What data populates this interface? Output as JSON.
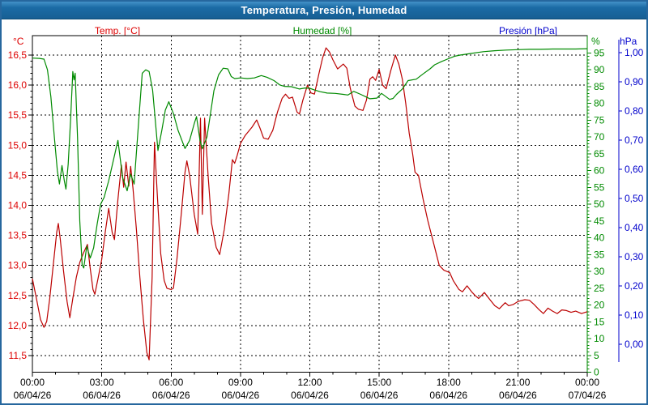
{
  "window": {
    "title": "Temperatura, Presión, Humedad"
  },
  "legend": [
    {
      "label": "Temp. [°C]",
      "color": "#dd0000"
    },
    {
      "label": "Humedad [%]",
      "color": "#008a00"
    },
    {
      "label": "Presión [hPa]",
      "color": "#0000cc"
    }
  ],
  "axes": {
    "temp": {
      "unit": "°C",
      "color": "#dd0000",
      "min": 11.5,
      "max": 16.5,
      "tick_values": [
        16.5,
        16.0,
        15.5,
        15.0,
        14.5,
        14.0,
        13.5,
        13.0,
        12.5,
        12.0,
        11.5
      ],
      "tick_labels": [
        "16,5",
        "16,0",
        "15,5",
        "15,0",
        "14,5",
        "14,0",
        "13,5",
        "13,0",
        "12,5",
        "12,0",
        "11,5"
      ]
    },
    "humidity": {
      "unit": "%",
      "color": "#008a00",
      "min": 0,
      "max": 95,
      "tick_values": [
        95,
        90,
        85,
        80,
        75,
        70,
        65,
        60,
        55,
        50,
        45,
        40,
        35,
        30,
        25,
        20,
        15,
        10,
        5,
        0
      ],
      "tick_labels": [
        "95",
        "90",
        "85",
        "80",
        "75",
        "70",
        "65",
        "60",
        "55",
        "50",
        "45",
        "40",
        "35",
        "30",
        "25",
        "20",
        "15",
        "10",
        "5",
        "0"
      ]
    },
    "pressure": {
      "unit": "hPa",
      "color": "#0000cc",
      "min": 0.0,
      "max": 1.0,
      "tick_values": [
        1.0,
        0.9,
        0.8,
        0.7,
        0.6,
        0.5,
        0.4,
        0.3,
        0.2,
        0.1,
        0.0
      ],
      "tick_labels": [
        "1,00",
        "0,90",
        "0,80",
        "0,70",
        "0,60",
        "0,50",
        "0,40",
        "0,30",
        "0,20",
        "0,10",
        "0,00"
      ]
    },
    "x": {
      "ticks": [
        {
          "t": 0,
          "time": "00:00",
          "date": "06/04/26"
        },
        {
          "t": 3,
          "time": "03:00",
          "date": "06/04/26"
        },
        {
          "t": 6,
          "time": "06:00",
          "date": "06/04/26"
        },
        {
          "t": 9,
          "time": "09:00",
          "date": "06/04/26"
        },
        {
          "t": 12,
          "time": "12:00",
          "date": "06/04/26"
        },
        {
          "t": 15,
          "time": "15:00",
          "date": "06/04/26"
        },
        {
          "t": 18,
          "time": "18:00",
          "date": "06/04/26"
        },
        {
          "t": 21,
          "time": "21:00",
          "date": "06/04/26"
        },
        {
          "t": 24,
          "time": "00:00",
          "date": "07/04/26"
        }
      ]
    }
  },
  "chart_data": {
    "type": "line",
    "title": "Temperatura, Presión, Humedad",
    "x_unit": "hours (0-24, 06/04/26 to 07/04/26)",
    "grid": "dashed black, horizontal every 0.5 °C, vertical every 3 h",
    "legend_position": "top",
    "series": [
      {
        "name": "Temp. [°C]",
        "axis": "temp",
        "color": "#bb0000",
        "points": [
          [
            0.0,
            12.78
          ],
          [
            0.2,
            12.4
          ],
          [
            0.35,
            12.1
          ],
          [
            0.5,
            11.97
          ],
          [
            0.62,
            12.07
          ],
          [
            0.75,
            12.45
          ],
          [
            0.9,
            13.0
          ],
          [
            1.05,
            13.55
          ],
          [
            1.12,
            13.7
          ],
          [
            1.2,
            13.45
          ],
          [
            1.35,
            12.9
          ],
          [
            1.5,
            12.4
          ],
          [
            1.62,
            12.13
          ],
          [
            1.75,
            12.45
          ],
          [
            1.9,
            12.8
          ],
          [
            2.05,
            13.05
          ],
          [
            2.2,
            13.2
          ],
          [
            2.38,
            13.35
          ],
          [
            2.5,
            12.95
          ],
          [
            2.62,
            12.6
          ],
          [
            2.7,
            12.52
          ],
          [
            2.85,
            12.8
          ],
          [
            3.0,
            13.1
          ],
          [
            3.15,
            13.55
          ],
          [
            3.3,
            13.95
          ],
          [
            3.45,
            13.55
          ],
          [
            3.55,
            13.43
          ],
          [
            3.7,
            14.1
          ],
          [
            3.85,
            14.67
          ],
          [
            3.95,
            14.3
          ],
          [
            4.05,
            14.72
          ],
          [
            4.17,
            14.32
          ],
          [
            4.25,
            14.65
          ],
          [
            4.35,
            14.28
          ],
          [
            4.5,
            13.6
          ],
          [
            4.65,
            12.8
          ],
          [
            4.8,
            12.1
          ],
          [
            4.95,
            11.55
          ],
          [
            5.05,
            11.43
          ],
          [
            5.18,
            12.8
          ],
          [
            5.28,
            15.05
          ],
          [
            5.4,
            14.2
          ],
          [
            5.55,
            13.2
          ],
          [
            5.7,
            12.75
          ],
          [
            5.82,
            12.62
          ],
          [
            6.0,
            12.6
          ],
          [
            6.1,
            12.62
          ],
          [
            6.25,
            13.1
          ],
          [
            6.45,
            13.9
          ],
          [
            6.6,
            14.55
          ],
          [
            6.68,
            14.74
          ],
          [
            6.8,
            14.5
          ],
          [
            7.0,
            13.85
          ],
          [
            7.15,
            13.52
          ],
          [
            7.27,
            15.45
          ],
          [
            7.35,
            13.85
          ],
          [
            7.45,
            15.45
          ],
          [
            7.6,
            14.5
          ],
          [
            7.75,
            13.7
          ],
          [
            7.95,
            13.3
          ],
          [
            8.1,
            13.18
          ],
          [
            8.3,
            13.6
          ],
          [
            8.5,
            14.2
          ],
          [
            8.65,
            14.76
          ],
          [
            8.75,
            14.7
          ],
          [
            8.85,
            14.82
          ],
          [
            9.0,
            15.03
          ],
          [
            9.2,
            15.16
          ],
          [
            9.5,
            15.3
          ],
          [
            9.7,
            15.42
          ],
          [
            9.85,
            15.28
          ],
          [
            10.0,
            15.12
          ],
          [
            10.2,
            15.1
          ],
          [
            10.4,
            15.25
          ],
          [
            10.6,
            15.55
          ],
          [
            10.8,
            15.78
          ],
          [
            10.95,
            15.85
          ],
          [
            11.1,
            15.78
          ],
          [
            11.25,
            15.8
          ],
          [
            11.45,
            15.55
          ],
          [
            11.55,
            15.52
          ],
          [
            11.7,
            15.75
          ],
          [
            11.9,
            16.0
          ],
          [
            12.05,
            15.87
          ],
          [
            12.2,
            15.85
          ],
          [
            12.4,
            16.2
          ],
          [
            12.55,
            16.45
          ],
          [
            12.7,
            16.62
          ],
          [
            12.85,
            16.55
          ],
          [
            13.0,
            16.42
          ],
          [
            13.2,
            16.27
          ],
          [
            13.45,
            16.35
          ],
          [
            13.6,
            16.28
          ],
          [
            13.75,
            15.95
          ],
          [
            13.95,
            15.65
          ],
          [
            14.1,
            15.6
          ],
          [
            14.3,
            15.58
          ],
          [
            14.45,
            15.75
          ],
          [
            14.6,
            16.1
          ],
          [
            14.72,
            16.14
          ],
          [
            14.85,
            16.08
          ],
          [
            15.0,
            16.26
          ],
          [
            15.15,
            16.0
          ],
          [
            15.3,
            15.94
          ],
          [
            15.5,
            16.24
          ],
          [
            15.7,
            16.5
          ],
          [
            15.85,
            16.35
          ],
          [
            16.0,
            16.1
          ],
          [
            16.15,
            15.7
          ],
          [
            16.3,
            15.2
          ],
          [
            16.45,
            14.85
          ],
          [
            16.55,
            14.55
          ],
          [
            16.7,
            14.5
          ],
          [
            16.9,
            14.1
          ],
          [
            17.1,
            13.75
          ],
          [
            17.3,
            13.45
          ],
          [
            17.6,
            13.0
          ],
          [
            17.8,
            12.92
          ],
          [
            18.05,
            12.88
          ],
          [
            18.2,
            12.75
          ],
          [
            18.45,
            12.6
          ],
          [
            18.6,
            12.56
          ],
          [
            18.8,
            12.66
          ],
          [
            19.0,
            12.56
          ],
          [
            19.15,
            12.5
          ],
          [
            19.3,
            12.45
          ],
          [
            19.55,
            12.55
          ],
          [
            19.75,
            12.45
          ],
          [
            20.0,
            12.33
          ],
          [
            20.2,
            12.28
          ],
          [
            20.45,
            12.38
          ],
          [
            20.6,
            12.33
          ],
          [
            20.8,
            12.35
          ],
          [
            21.0,
            12.4
          ],
          [
            21.3,
            12.43
          ],
          [
            21.5,
            12.42
          ],
          [
            21.7,
            12.35
          ],
          [
            21.9,
            12.27
          ],
          [
            22.1,
            12.2
          ],
          [
            22.3,
            12.29
          ],
          [
            22.5,
            12.24
          ],
          [
            22.7,
            12.2
          ],
          [
            22.9,
            12.26
          ],
          [
            23.1,
            12.25
          ],
          [
            23.3,
            12.22
          ],
          [
            23.5,
            12.24
          ],
          [
            23.75,
            12.2
          ],
          [
            24.0,
            12.23
          ]
        ]
      },
      {
        "name": "Humedad [%]",
        "axis": "humidity",
        "color": "#008a00",
        "points": [
          [
            0.0,
            93.5
          ],
          [
            0.3,
            93.4
          ],
          [
            0.5,
            93.2
          ],
          [
            0.65,
            90
          ],
          [
            0.8,
            82
          ],
          [
            0.95,
            70
          ],
          [
            1.08,
            60
          ],
          [
            1.17,
            56
          ],
          [
            1.28,
            61.5
          ],
          [
            1.38,
            57
          ],
          [
            1.45,
            54.5
          ],
          [
            1.55,
            62
          ],
          [
            1.65,
            75
          ],
          [
            1.75,
            89.5
          ],
          [
            1.8,
            87
          ],
          [
            1.85,
            89
          ],
          [
            1.95,
            70
          ],
          [
            2.05,
            45
          ],
          [
            2.15,
            32
          ],
          [
            2.22,
            31
          ],
          [
            2.35,
            37.5
          ],
          [
            2.5,
            34
          ],
          [
            2.65,
            37
          ],
          [
            2.8,
            44
          ],
          [
            2.95,
            50
          ],
          [
            3.1,
            52
          ],
          [
            3.3,
            57
          ],
          [
            3.5,
            63
          ],
          [
            3.7,
            69
          ],
          [
            3.9,
            58
          ],
          [
            4.1,
            54
          ],
          [
            4.25,
            59
          ],
          [
            4.4,
            56
          ],
          [
            4.6,
            75
          ],
          [
            4.75,
            89
          ],
          [
            4.9,
            90
          ],
          [
            5.05,
            89.5
          ],
          [
            5.2,
            84
          ],
          [
            5.43,
            66
          ],
          [
            5.6,
            72
          ],
          [
            5.75,
            78
          ],
          [
            5.9,
            80.5
          ],
          [
            6.1,
            77
          ],
          [
            6.3,
            72
          ],
          [
            6.6,
            66.6
          ],
          [
            6.8,
            69
          ],
          [
            7.0,
            74
          ],
          [
            7.1,
            76.1
          ],
          [
            7.25,
            69
          ],
          [
            7.35,
            66.5
          ],
          [
            7.55,
            70
          ],
          [
            7.85,
            83.8
          ],
          [
            8.05,
            88.5
          ],
          [
            8.25,
            90.5
          ],
          [
            8.45,
            90.3
          ],
          [
            8.6,
            88
          ],
          [
            8.75,
            87.4
          ],
          [
            9.0,
            87.6
          ],
          [
            9.3,
            87.4
          ],
          [
            9.6,
            87.6
          ],
          [
            9.9,
            88.3
          ],
          [
            10.15,
            87.8
          ],
          [
            10.45,
            86.8
          ],
          [
            10.7,
            85.5
          ],
          [
            10.9,
            85.1
          ],
          [
            11.2,
            85.0
          ],
          [
            11.55,
            84.3
          ],
          [
            11.8,
            84.6
          ],
          [
            12.0,
            84.5
          ],
          [
            12.2,
            84.0
          ],
          [
            12.45,
            83.5
          ],
          [
            12.75,
            83.1
          ],
          [
            13.1,
            83.0
          ],
          [
            13.45,
            82.7
          ],
          [
            13.65,
            82.5
          ],
          [
            13.9,
            83.6
          ],
          [
            14.2,
            82.7
          ],
          [
            14.6,
            81.4
          ],
          [
            14.9,
            81.6
          ],
          [
            15.1,
            83.0
          ],
          [
            15.45,
            81.2
          ],
          [
            15.6,
            81.5
          ],
          [
            15.75,
            82.7
          ],
          [
            16.0,
            84.3
          ],
          [
            16.25,
            86.8
          ],
          [
            16.6,
            87.2
          ],
          [
            16.9,
            88.8
          ],
          [
            17.2,
            90.3
          ],
          [
            17.4,
            91.5
          ],
          [
            17.7,
            92.5
          ],
          [
            17.95,
            93.2
          ],
          [
            18.25,
            94.0
          ],
          [
            18.5,
            94.4
          ],
          [
            19.0,
            94.9
          ],
          [
            19.5,
            95.4
          ],
          [
            20.0,
            95.7
          ],
          [
            20.5,
            95.9
          ],
          [
            21.0,
            96.0
          ],
          [
            21.5,
            96.1
          ],
          [
            22.0,
            96.1
          ],
          [
            22.5,
            96.2
          ],
          [
            23.0,
            96.2
          ],
          [
            23.5,
            96.2
          ],
          [
            24.0,
            96.3
          ]
        ]
      },
      {
        "name": "Presión [hPa]",
        "axis": "pressure",
        "color": "#0000cc",
        "points": [],
        "note": "no visible trace in plot area"
      }
    ]
  }
}
